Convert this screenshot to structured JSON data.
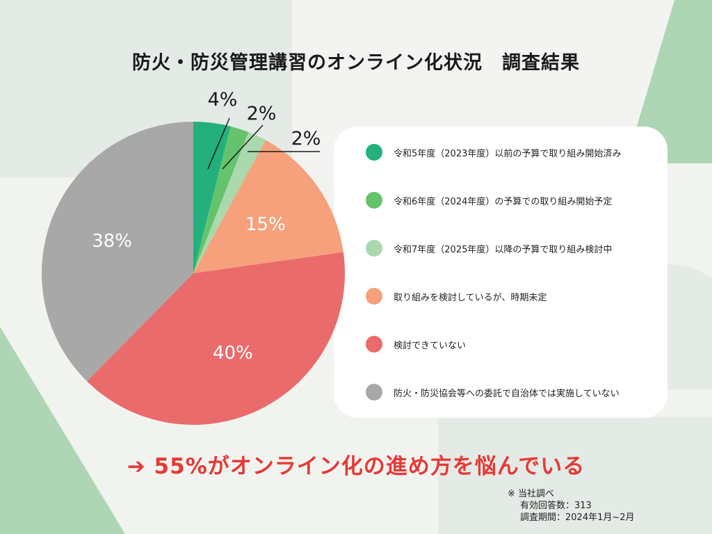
{
  "title": "防火・防災管理講習のオンライン化状況　調査結果",
  "chart_data": {
    "type": "pie",
    "title": "防火・防災管理講習のオンライン化状況　調査結果",
    "slices": [
      {
        "label": "令和5年度（2023年度）以前の予算で取り組み開始済み",
        "value": 4,
        "display": "4%",
        "color": "#23b07d"
      },
      {
        "label": "令和6年度（2024年度）の予算での取り組み開始予定",
        "value": 2,
        "display": "2%",
        "color": "#64c36c"
      },
      {
        "label": "令和7年度（2025年度）以降の予算で取り組み検討中",
        "value": 2,
        "display": "2%",
        "color": "#a9d9ad"
      },
      {
        "label": "取り組みを検討しているが、時期未定",
        "value": 15,
        "display": "15%",
        "color": "#f6a17c"
      },
      {
        "label": "検討できていない",
        "value": 40,
        "display": "40%",
        "color": "#ea6b6b"
      },
      {
        "label": "防火・防災協会等への委託で自治体では実施していない",
        "value": 38,
        "display": "38%",
        "color": "#a8a8a8"
      }
    ],
    "legend_position": "right"
  },
  "conclusion": "➔ 55%がオンライン化の進め方を悩んでいる",
  "note": {
    "line1": "※ 当社調べ",
    "line2": "有効回答数：313",
    "line3": "調査期間：2024年1月~2月"
  }
}
